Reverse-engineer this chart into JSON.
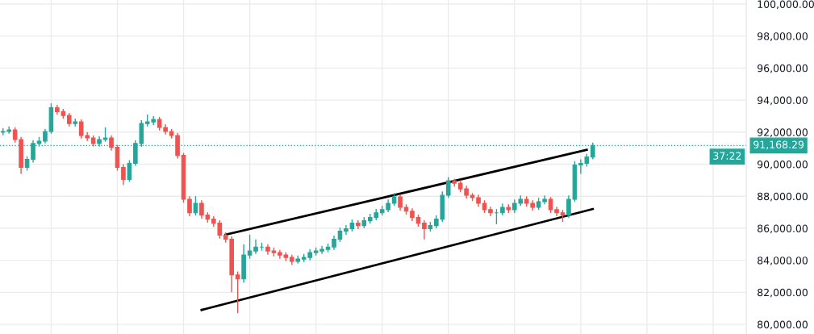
{
  "chart_data": {
    "type": "candlestick",
    "categories": [
      null,
      null,
      null,
      null,
      null,
      null,
      null,
      null,
      null,
      null,
      null,
      null,
      null,
      null,
      null,
      null,
      null,
      null,
      null,
      null,
      null,
      null,
      null,
      null,
      null,
      null,
      null,
      null,
      null,
      null,
      null,
      null,
      null,
      null,
      null,
      null,
      null,
      null,
      null,
      null,
      null,
      null,
      null,
      null,
      null,
      null,
      null,
      null,
      null,
      null,
      null,
      null,
      null,
      null,
      null,
      null,
      null,
      null,
      null,
      null,
      null,
      null,
      null,
      null,
      null,
      null,
      null,
      null,
      null,
      null,
      null,
      null,
      null,
      null,
      null,
      null,
      null,
      null,
      null,
      null,
      null,
      null,
      null,
      null,
      null,
      null,
      null,
      null,
      null,
      null,
      null,
      null,
      null,
      null,
      null,
      null,
      null,
      null,
      null,
      null,
      null,
      null,
      null,
      null,
      null,
      null,
      null,
      null,
      null,
      null,
      null,
      null,
      null,
      null,
      null,
      null,
      null,
      null,
      null,
      null,
      null,
      null,
      null,
      null
    ],
    "ohlc": [
      [
        92000,
        92250,
        91800,
        92040
      ],
      [
        92040,
        92350,
        91900,
        92140
      ],
      [
        92140,
        92300,
        91350,
        91540
      ],
      [
        91540,
        91700,
        89400,
        89800
      ],
      [
        89800,
        90500,
        89600,
        90300
      ],
      [
        90300,
        91500,
        90100,
        91290
      ],
      [
        91290,
        91700,
        91100,
        91440
      ],
      [
        91440,
        92200,
        91300,
        92040
      ],
      [
        92040,
        93800,
        91900,
        93530
      ],
      [
        93530,
        93700,
        93100,
        93280
      ],
      [
        93280,
        93450,
        92850,
        93040
      ],
      [
        93040,
        93200,
        92350,
        92540
      ],
      [
        92540,
        92850,
        92350,
        92640
      ],
      [
        92640,
        92800,
        91600,
        91790
      ],
      [
        91790,
        92000,
        91450,
        91640
      ],
      [
        91640,
        91800,
        91100,
        91290
      ],
      [
        91290,
        91750,
        91100,
        91540
      ],
      [
        91540,
        92300,
        91400,
        91640
      ],
      [
        91640,
        91800,
        90850,
        91050
      ],
      [
        91050,
        91200,
        89600,
        89800
      ],
      [
        89800,
        90000,
        88700,
        89050
      ],
      [
        89050,
        90250,
        88900,
        90050
      ],
      [
        90050,
        91500,
        89900,
        91290
      ],
      [
        91290,
        92750,
        91100,
        92540
      ],
      [
        92540,
        93100,
        92350,
        92640
      ],
      [
        92640,
        93000,
        92450,
        92790
      ],
      [
        92790,
        92950,
        92100,
        92290
      ],
      [
        92290,
        92500,
        91850,
        92040
      ],
      [
        92040,
        92200,
        91600,
        91790
      ],
      [
        91790,
        91950,
        90350,
        90550
      ],
      [
        90550,
        90700,
        87600,
        87810
      ],
      [
        87810,
        88000,
        86750,
        86970
      ],
      [
        86970,
        88000,
        86800,
        87560
      ],
      [
        87560,
        87750,
        86600,
        86820
      ],
      [
        86820,
        87000,
        86350,
        86570
      ],
      [
        86570,
        86750,
        86100,
        86320
      ],
      [
        86320,
        86500,
        85350,
        85570
      ],
      [
        85570,
        85750,
        85100,
        85320
      ],
      [
        85320,
        85500,
        82000,
        83090
      ],
      [
        83090,
        83300,
        80700,
        82840
      ],
      [
        82840,
        85000,
        82600,
        84330
      ],
      [
        84330,
        85600,
        84100,
        84580
      ],
      [
        84580,
        85300,
        84400,
        84830
      ],
      [
        84830,
        85100,
        84600,
        84830
      ],
      [
        84830,
        85000,
        84350,
        84580
      ],
      [
        84580,
        84800,
        84250,
        84480
      ],
      [
        84480,
        84650,
        84100,
        84330
      ],
      [
        84330,
        84500,
        83950,
        84180
      ],
      [
        84180,
        84350,
        83700,
        83930
      ],
      [
        83930,
        84300,
        83800,
        84080
      ],
      [
        84080,
        84400,
        83900,
        84180
      ],
      [
        84180,
        84700,
        84000,
        84480
      ],
      [
        84480,
        84800,
        84300,
        84580
      ],
      [
        84580,
        84900,
        84400,
        84680
      ],
      [
        84680,
        85050,
        84500,
        84830
      ],
      [
        84830,
        85550,
        84650,
        85320
      ],
      [
        85320,
        86050,
        85150,
        85820
      ],
      [
        85820,
        86200,
        85600,
        85970
      ],
      [
        85970,
        86550,
        85800,
        86320
      ],
      [
        86320,
        86500,
        85950,
        86170
      ],
      [
        86170,
        86700,
        86000,
        86470
      ],
      [
        86470,
        86900,
        86300,
        86670
      ],
      [
        86670,
        87200,
        86500,
        86970
      ],
      [
        86970,
        87400,
        86800,
        87160
      ],
      [
        87160,
        87800,
        87000,
        87560
      ],
      [
        87560,
        88200,
        87400,
        87960
      ],
      [
        87960,
        88100,
        87100,
        87310
      ],
      [
        87310,
        87500,
        86850,
        87070
      ],
      [
        87070,
        87250,
        86450,
        86670
      ],
      [
        86670,
        86850,
        86100,
        86320
      ],
      [
        86320,
        86500,
        85300,
        85970
      ],
      [
        85970,
        86400,
        85800,
        86170
      ],
      [
        86170,
        86800,
        86000,
        86570
      ],
      [
        86570,
        88300,
        86400,
        88060
      ],
      [
        88060,
        89200,
        87900,
        88960
      ],
      [
        88960,
        89100,
        88600,
        88810
      ],
      [
        88810,
        89000,
        88250,
        88460
      ],
      [
        88460,
        88650,
        87850,
        88060
      ],
      [
        88060,
        88200,
        87700,
        87910
      ],
      [
        87910,
        88100,
        87350,
        87560
      ],
      [
        87560,
        87750,
        86950,
        87160
      ],
      [
        87160,
        87350,
        86750,
        86970
      ],
      [
        86970,
        87200,
        86250,
        86970
      ],
      [
        86970,
        87550,
        86800,
        87310
      ],
      [
        87310,
        87500,
        86950,
        87160
      ],
      [
        87160,
        87800,
        86950,
        87560
      ],
      [
        87560,
        88050,
        87400,
        87810
      ],
      [
        87810,
        88000,
        87350,
        87560
      ],
      [
        87560,
        87750,
        87100,
        87310
      ],
      [
        87310,
        87900,
        87150,
        87660
      ],
      [
        87660,
        88050,
        87500,
        87810
      ],
      [
        87810,
        87950,
        86950,
        87160
      ],
      [
        87160,
        87350,
        86750,
        86970
      ],
      [
        86970,
        87150,
        86400,
        86820
      ],
      [
        86820,
        88050,
        86650,
        87810
      ],
      [
        87810,
        90200,
        87650,
        89950
      ],
      [
        89950,
        90300,
        89400,
        90050
      ],
      [
        90050,
        90650,
        89850,
        90450
      ],
      [
        90450,
        91350,
        90300,
        91168.29
      ],
      null,
      null,
      null,
      null,
      null,
      null,
      null,
      null,
      null,
      null,
      null,
      null,
      null,
      null,
      null,
      null,
      null,
      null,
      null,
      null,
      null,
      null,
      null,
      null,
      null
    ],
    "colors": [
      "#26a69a",
      "#26a69a",
      "#ef5350",
      "#ef5350",
      "#26a69a",
      "#26a69a",
      "#26a69a",
      "#26a69a",
      "#26a69a",
      "#ef5350",
      "#ef5350",
      "#ef5350",
      "#26a69a",
      "#ef5350",
      "#ef5350",
      "#ef5350",
      "#26a69a",
      "#26a69a",
      "#ef5350",
      "#ef5350",
      "#ef5350",
      "#26a69a",
      "#26a69a",
      "#26a69a",
      "#26a69a",
      "#26a69a",
      "#ef5350",
      "#ef5350",
      "#ef5350",
      "#ef5350",
      "#ef5350",
      "#ef5350",
      "#26a69a",
      "#ef5350",
      "#ef5350",
      "#ef5350",
      "#ef5350",
      "#ef5350",
      "#ef5350",
      "#ef5350",
      "#26a69a",
      "#26a69a",
      "#26a69a",
      "#26a69a",
      "#ef5350",
      "#ef5350",
      "#ef5350",
      "#ef5350",
      "#ef5350",
      "#26a69a",
      "#26a69a",
      "#26a69a",
      "#26a69a",
      "#26a69a",
      "#26a69a",
      "#26a69a",
      "#26a69a",
      "#26a69a",
      "#26a69a",
      "#ef5350",
      "#26a69a",
      "#26a69a",
      "#26a69a",
      "#26a69a",
      "#26a69a",
      "#26a69a",
      "#ef5350",
      "#ef5350",
      "#ef5350",
      "#ef5350",
      "#ef5350",
      "#26a69a",
      "#26a69a",
      "#26a69a",
      "#26a69a",
      "#ef5350",
      "#ef5350",
      "#ef5350",
      "#ef5350",
      "#ef5350",
      "#ef5350",
      "#ef5350",
      "#26a69a",
      "#26a69a",
      "#ef5350",
      "#26a69a",
      "#26a69a",
      "#ef5350",
      "#ef5350",
      "#26a69a",
      "#26a69a",
      "#ef5350",
      "#ef5350",
      "#ef5350",
      "#26a69a",
      "#26a69a",
      "#26a69a",
      "#26a69a",
      "#26a69a",
      null,
      null,
      null,
      null,
      null,
      null,
      null,
      null,
      null,
      null,
      null,
      null,
      null,
      null,
      null,
      null,
      null,
      null,
      null,
      null,
      null,
      null,
      null,
      null,
      null
    ],
    "series": [
      {
        "type": "line",
        "color": "#000000",
        "values": [
          null,
          null,
          null,
          null,
          null,
          null,
          null,
          null,
          null,
          null,
          null,
          null,
          null,
          null,
          null,
          null,
          null,
          null,
          null,
          null,
          null,
          null,
          null,
          null,
          null,
          null,
          null,
          null,
          null,
          null,
          null,
          null,
          null,
          null,
          null,
          null,
          null,
          85600,
          null,
          null,
          null,
          null,
          null,
          null,
          null,
          null,
          null,
          null,
          null,
          null,
          null,
          null,
          null,
          null,
          null,
          null,
          null,
          null,
          null,
          null,
          null,
          null,
          null,
          null,
          null,
          null,
          null,
          null,
          null,
          null,
          null,
          null,
          null,
          null,
          null,
          null,
          null,
          null,
          null,
          null,
          null,
          null,
          null,
          null,
          null,
          null,
          null,
          null,
          null,
          null,
          null,
          null,
          null,
          null,
          null,
          null,
          null,
          90900,
          null,
          null,
          null,
          null,
          null,
          null,
          null,
          null,
          null,
          null,
          null,
          null,
          null,
          null,
          null,
          null,
          null,
          null,
          null,
          null,
          null,
          null,
          null,
          null,
          null,
          null
        ]
      },
      {
        "type": "line",
        "color": "#000000",
        "values": [
          null,
          null,
          null,
          null,
          null,
          null,
          null,
          null,
          null,
          null,
          null,
          null,
          null,
          null,
          null,
          null,
          null,
          null,
          null,
          null,
          null,
          null,
          null,
          null,
          null,
          null,
          null,
          null,
          null,
          null,
          null,
          null,
          null,
          80900,
          null,
          null,
          null,
          null,
          null,
          null,
          null,
          null,
          null,
          null,
          null,
          null,
          null,
          null,
          null,
          null,
          null,
          null,
          null,
          null,
          null,
          null,
          null,
          null,
          null,
          null,
          null,
          null,
          null,
          null,
          null,
          null,
          null,
          null,
          null,
          null,
          null,
          null,
          null,
          null,
          null,
          null,
          null,
          null,
          null,
          null,
          null,
          null,
          null,
          null,
          null,
          null,
          null,
          null,
          null,
          null,
          null,
          null,
          null,
          null,
          null,
          null,
          null,
          null,
          87200,
          null,
          null,
          null,
          null,
          null,
          null,
          null,
          null,
          null,
          null,
          null,
          null,
          null,
          null,
          null,
          null,
          null,
          null,
          null,
          null,
          null,
          null,
          null,
          null,
          null
        ]
      }
    ],
    "ylim": [
      79400,
      100250
    ],
    "yticks": [
      {
        "value": 80000,
        "label": "80,000.00"
      },
      {
        "value": 82000,
        "label": "82,000.00"
      },
      {
        "value": 84000,
        "label": "84,000.00"
      },
      {
        "value": 86000,
        "label": "86,000.00"
      },
      {
        "value": 88000,
        "label": "88,000.00"
      },
      {
        "value": 90000,
        "label": "90,000.00"
      },
      {
        "value": 92000,
        "label": "92,000.00"
      },
      {
        "value": 94000,
        "label": "94,000.00"
      },
      {
        "value": 96000,
        "label": "96,000.00"
      },
      {
        "value": 98000,
        "label": "98,000.00"
      },
      {
        "value": 100000,
        "label": "100,000.00"
      }
    ],
    "tick_labels": "y",
    "grid": true,
    "ref_lines": [
      {
        "axis": "y",
        "value": 91168.29,
        "label": "91,168.29",
        "color": "#26a69a",
        "line_style": "dotted"
      }
    ],
    "annotations": [
      "37:22"
    ]
  }
}
